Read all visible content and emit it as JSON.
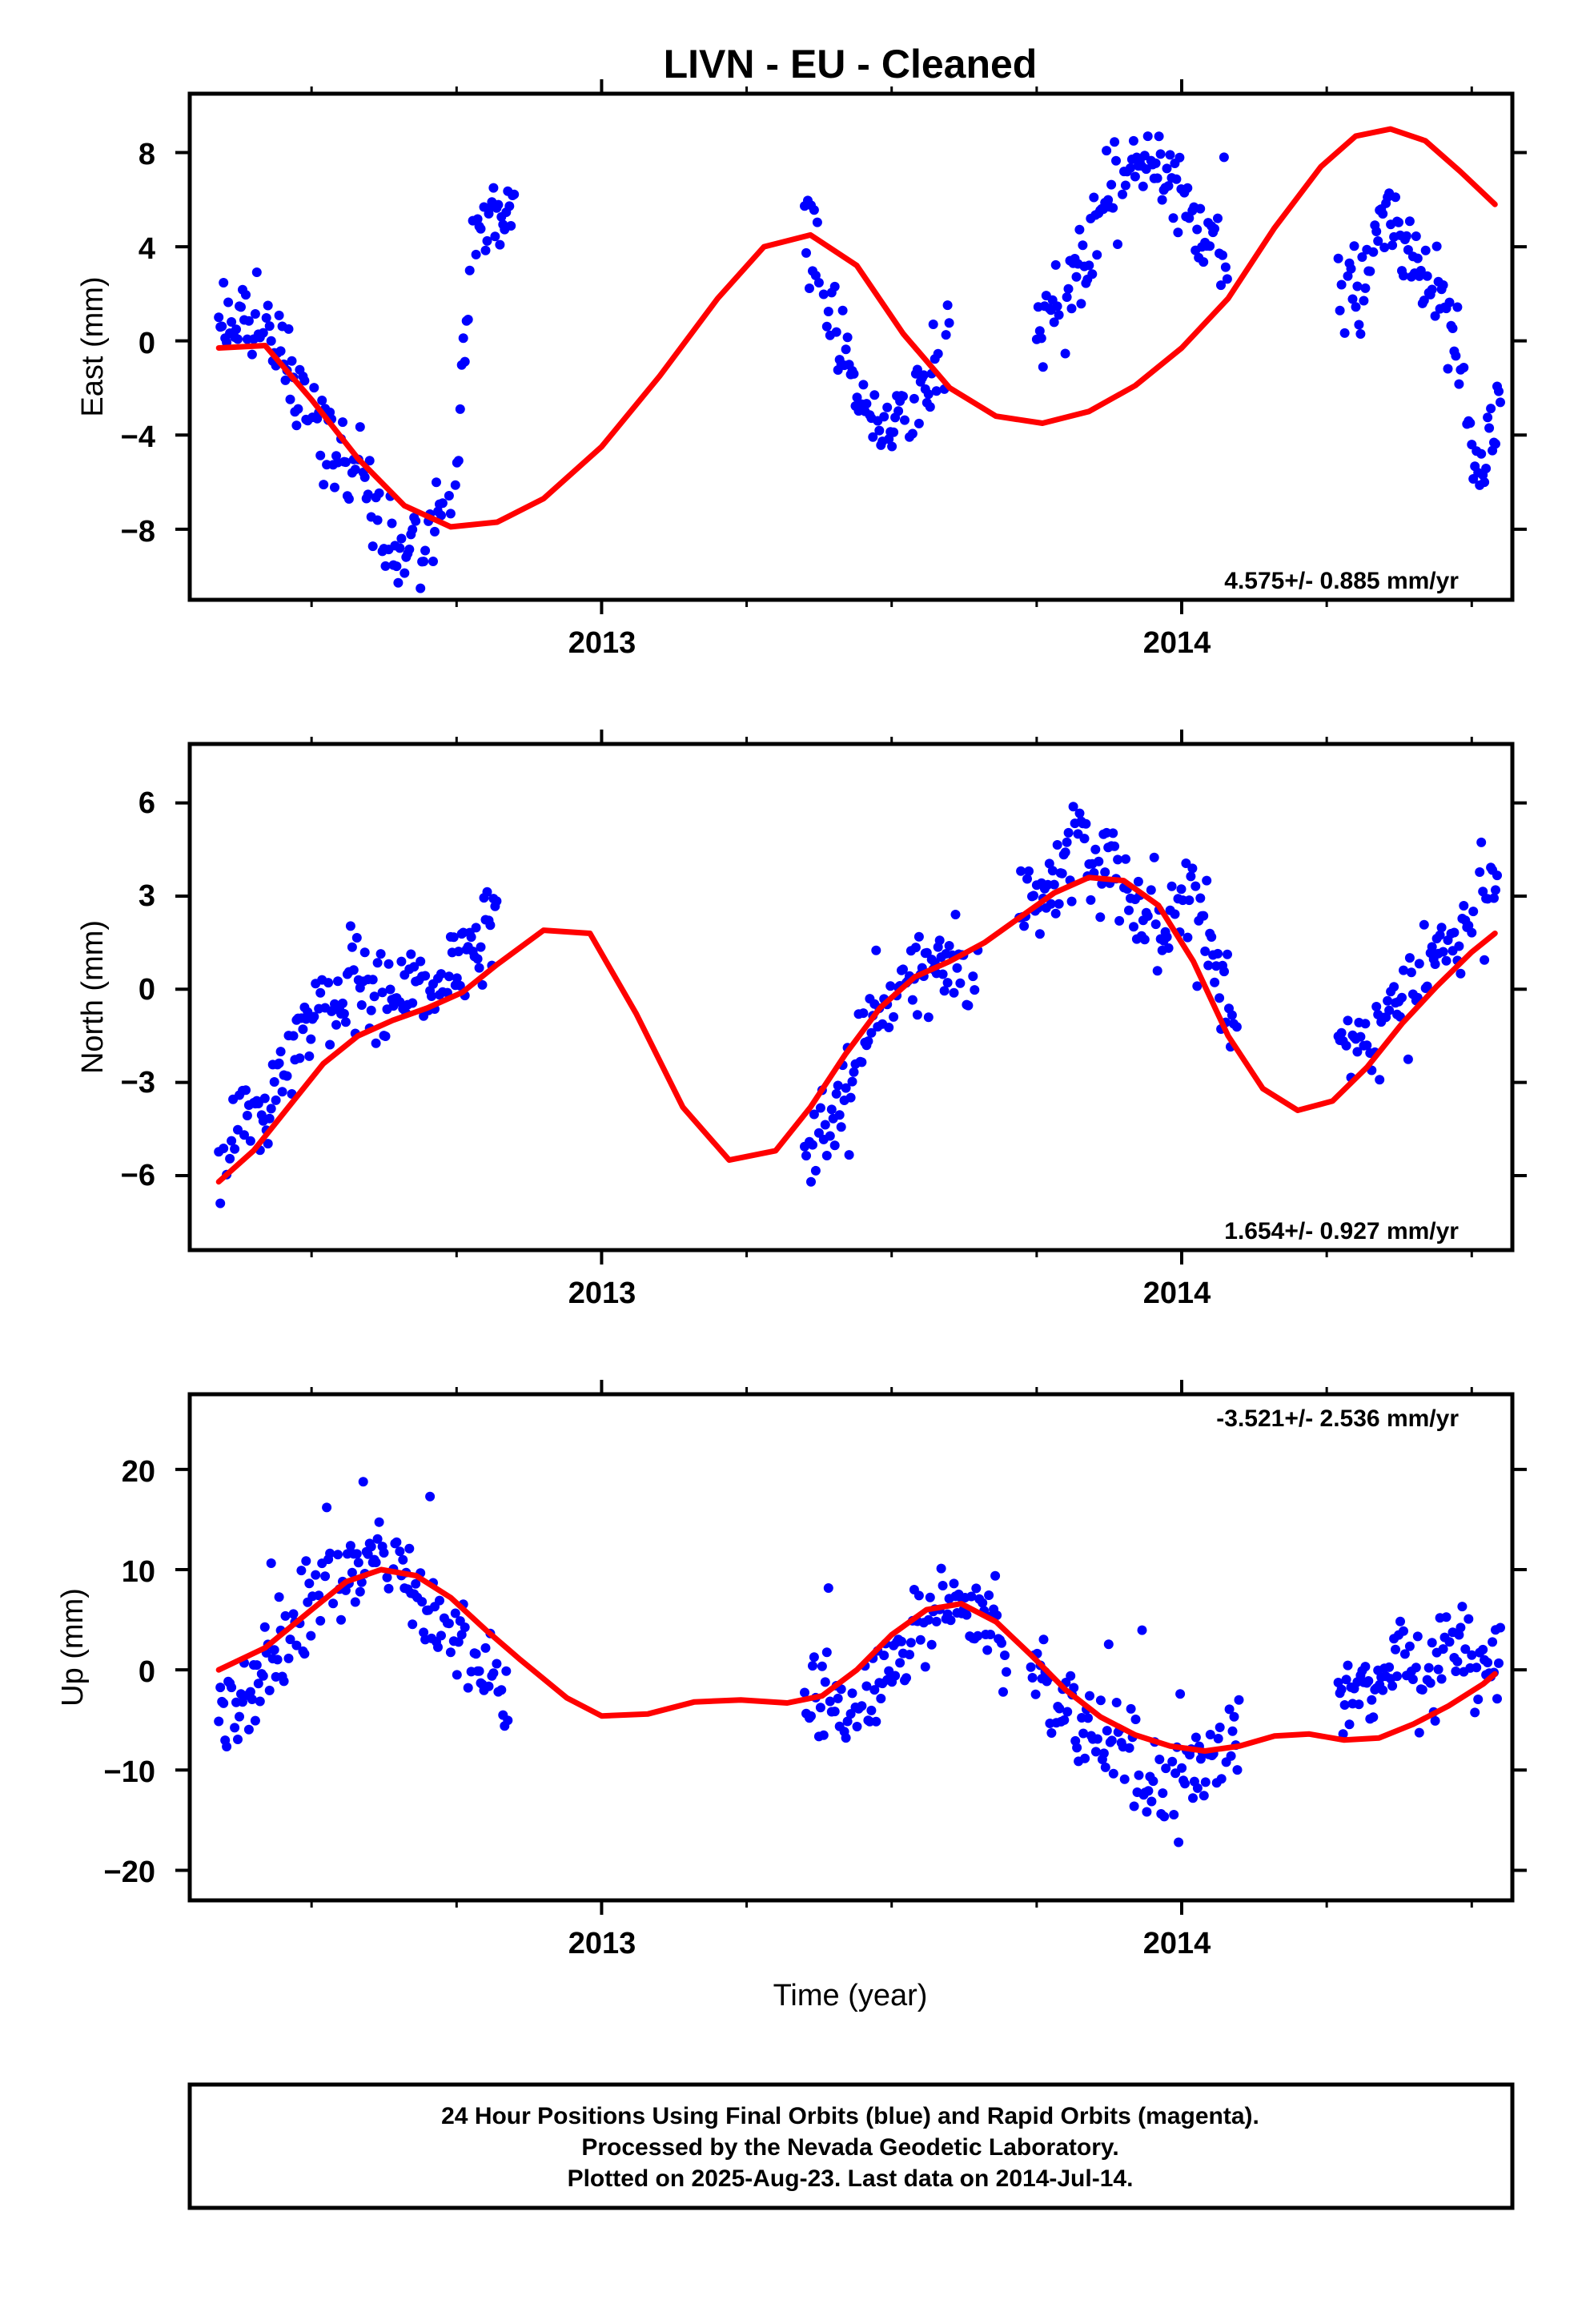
{
  "title": "LIVN  - EU - Cleaned",
  "xlabel": "Time (year)",
  "footer": [
    "24 Hour Positions Using Final Orbits (blue) and Rapid Orbits (magenta).",
    "Processed by the Nevada Geodetic Laboratory.",
    "Plotted on 2025-Aug-23. Last data on 2014-Jul-14."
  ],
  "colors": {
    "points": "#0000ff",
    "model": "#ff0000",
    "frame": "#000000"
  },
  "chart_data": [
    {
      "type": "scatter",
      "ylabel": "East (mm)",
      "rate": "4.575+/- 0.885 mm/yr",
      "xlim": [
        2012.29,
        2014.57
      ],
      "ylim": [
        -11,
        10.5
      ],
      "xticks": [
        2013,
        2014
      ],
      "xtick_labels": [
        "2013",
        "2014"
      ],
      "yticks": [
        8,
        4,
        0,
        -4,
        -8
      ],
      "ytick_labels": [
        "8",
        "4",
        "0",
        "−4",
        "−8"
      ],
      "grid": false,
      "segments": [
        [
          2012.34,
          2012.85,
          2
        ],
        [
          2013.35,
          2013.6,
          5
        ],
        [
          2013.75,
          2014.08,
          1
        ],
        [
          2014.27,
          2014.55,
          7
        ]
      ],
      "series": [
        {
          "kind": "points",
          "x": [
            2012.34,
            2012.38,
            2012.42,
            2012.46,
            2012.5,
            2012.54,
            2012.58,
            2012.62,
            2012.66,
            2012.7,
            2012.74,
            2012.78,
            2012.82,
            2012.85,
            2013.35,
            2013.38,
            2013.41,
            2013.44,
            2013.47,
            2013.5,
            2013.53,
            2013.56,
            2013.6,
            2013.75,
            2013.79,
            2013.83,
            2013.87,
            2013.91,
            2013.95,
            2013.99,
            2014.03,
            2014.08,
            2014.27,
            2014.31,
            2014.35,
            2014.39,
            2014.43,
            2014.47,
            2014.51,
            2014.55
          ],
          "y": [
            1.2,
            1,
            0.5,
            -1.5,
            -3,
            -4.8,
            -5.6,
            -8.2,
            -8.5,
            -7.8,
            -7.5,
            4.8,
            5.2,
            5.5,
            5.8,
            2,
            -1,
            -2.2,
            -3.2,
            -3.5,
            -2.8,
            -1.6,
            -0.5,
            0.6,
            1.5,
            2.4,
            6.8,
            7.5,
            7,
            6.2,
            5,
            3.2,
            2.5,
            1.8,
            6,
            4,
            2,
            0.5,
            -6,
            -2
          ]
        },
        {
          "kind": "model",
          "x": [
            2012.34,
            2012.42,
            2012.5,
            2012.58,
            2012.66,
            2012.74,
            2012.82,
            2012.9,
            2013,
            2013.1,
            2013.2,
            2013.28,
            2013.36,
            2013.44,
            2013.52,
            2013.6,
            2013.68,
            2013.76,
            2013.84,
            2013.92,
            2014,
            2014.08,
            2014.16,
            2014.24,
            2014.3,
            2014.36,
            2014.42,
            2014.48,
            2014.54
          ],
          "y": [
            -0.3,
            -0.2,
            -2.5,
            -5,
            -7,
            -7.9,
            -7.7,
            -6.7,
            -4.5,
            -1.5,
            1.8,
            4,
            4.5,
            3.2,
            0.3,
            -2,
            -3.2,
            -3.5,
            -3,
            -1.9,
            -0.3,
            1.8,
            4.8,
            7.4,
            8.7,
            9,
            8.5,
            7.2,
            5.8
          ]
        }
      ]
    },
    {
      "type": "scatter",
      "ylabel": "North (mm)",
      "rate": "1.654+/- 0.927 mm/yr",
      "xlim": [
        2012.29,
        2014.57
      ],
      "ylim": [
        -8.4,
        7.9
      ],
      "xticks": [
        2013,
        2014
      ],
      "xtick_labels": [
        "2013",
        "2014"
      ],
      "yticks": [
        6,
        3,
        0,
        -3,
        -6
      ],
      "ytick_labels": [
        "6",
        "3",
        "0",
        "−3",
        "−6"
      ],
      "grid": false,
      "segments": [
        [
          2012.34,
          2012.82,
          3
        ],
        [
          2013.35,
          2013.65,
          8
        ],
        [
          2013.72,
          2014.1,
          4
        ],
        [
          2014.27,
          2014.55,
          9
        ]
      ],
      "series": [
        {
          "kind": "points",
          "x": [
            2012.34,
            2012.38,
            2012.42,
            2012.46,
            2012.5,
            2012.54,
            2012.58,
            2012.62,
            2012.66,
            2012.7,
            2012.74,
            2012.78,
            2012.82,
            2013.35,
            2013.39,
            2013.43,
            2013.47,
            2013.51,
            2013.55,
            2013.59,
            2013.65,
            2013.72,
            2013.77,
            2013.82,
            2013.87,
            2013.92,
            2013.97,
            2014.02,
            2014.07,
            2014.1,
            2014.27,
            2014.31,
            2014.35,
            2014.39,
            2014.43,
            2014.47,
            2014.51,
            2014.55
          ],
          "y": [
            -5.8,
            -4.2,
            -3.6,
            -2,
            -1,
            0,
            0.6,
            -0.4,
            -0.2,
            -0.5,
            0.5,
            1,
            2,
            -5,
            -4.5,
            -3.2,
            -1,
            0.2,
            0.5,
            0.6,
            0.7,
            2.5,
            3.4,
            4.8,
            4.2,
            2.5,
            2,
            2.8,
            0.2,
            -2,
            -1.2,
            -1.8,
            -0.8,
            0,
            1.2,
            1.8,
            2.6,
            3.4
          ]
        },
        {
          "kind": "model",
          "x": [
            2012.34,
            2012.4,
            2012.46,
            2012.52,
            2012.58,
            2012.64,
            2012.7,
            2012.76,
            2012.82,
            2012.9,
            2012.98,
            2013.06,
            2013.14,
            2013.22,
            2013.3,
            2013.36,
            2013.42,
            2013.48,
            2013.54,
            2013.6,
            2013.66,
            2013.72,
            2013.78,
            2013.84,
            2013.9,
            2013.96,
            2014.02,
            2014.08,
            2014.14,
            2014.2,
            2014.26,
            2014.32,
            2014.38,
            2014.44,
            2014.5,
            2014.54
          ],
          "y": [
            -6.2,
            -5.2,
            -3.8,
            -2.4,
            -1.5,
            -1,
            -0.6,
            -0.1,
            0.8,
            1.9,
            1.8,
            -0.8,
            -3.8,
            -5.5,
            -5.2,
            -3.8,
            -2.1,
            -0.6,
            0.4,
            0.9,
            1.5,
            2.3,
            3.1,
            3.6,
            3.5,
            2.7,
            0.9,
            -1.5,
            -3.2,
            -3.9,
            -3.6,
            -2.5,
            -1.1,
            0.1,
            1.2,
            1.8
          ]
        }
      ]
    },
    {
      "type": "scatter",
      "ylabel": "Up (mm)",
      "rate": "-3.521+/- 2.536 mm/yr",
      "xlim": [
        2012.29,
        2014.57
      ],
      "ylim": [
        -23,
        27.5
      ],
      "xticks": [
        2013,
        2014
      ],
      "xtick_labels": [
        "2013",
        "2014"
      ],
      "yticks": [
        20,
        10,
        0,
        -10,
        -20
      ],
      "ytick_labels": [
        "20",
        "10",
        "0",
        "−10",
        "−20"
      ],
      "grid": false,
      "segments": [
        [
          2012.34,
          2012.84,
          11
        ],
        [
          2013.35,
          2013.7,
          13
        ],
        [
          2013.74,
          2014.1,
          17
        ],
        [
          2014.27,
          2014.55,
          19
        ]
      ],
      "series": [
        {
          "kind": "points",
          "x": [
            2012.34,
            2012.38,
            2012.42,
            2012.46,
            2012.5,
            2012.54,
            2012.58,
            2012.62,
            2012.66,
            2012.7,
            2012.74,
            2012.78,
            2012.82,
            2012.84,
            2013.35,
            2013.39,
            2013.43,
            2013.47,
            2013.51,
            2013.55,
            2013.59,
            2013.63,
            2013.67,
            2013.7,
            2013.74,
            2013.78,
            2013.82,
            2013.86,
            2013.9,
            2013.94,
            2013.98,
            2014.02,
            2014.06,
            2014.1,
            2014.27,
            2014.31,
            2014.35,
            2014.39,
            2014.43,
            2014.47,
            2014.51,
            2014.55
          ],
          "y": [
            -5,
            -3,
            0,
            4,
            7,
            9,
            10.5,
            11,
            9,
            6,
            4,
            2,
            -2,
            -4,
            -4,
            -3,
            -5,
            -2,
            2,
            4,
            6,
            7,
            5,
            3,
            0,
            -3,
            -5,
            -7,
            -9,
            -10,
            -11,
            -9,
            -8,
            -6,
            -3,
            -2,
            0,
            1,
            -1,
            2,
            1,
            2
          ]
        },
        {
          "kind": "model",
          "x": [
            2012.34,
            2012.42,
            2012.5,
            2012.56,
            2012.62,
            2012.68,
            2012.74,
            2012.8,
            2012.86,
            2012.94,
            2013,
            2013.08,
            2013.16,
            2013.24,
            2013.32,
            2013.38,
            2013.44,
            2013.5,
            2013.56,
            2013.62,
            2013.68,
            2013.74,
            2013.8,
            2013.86,
            2013.92,
            2013.98,
            2014.04,
            2014.1,
            2014.16,
            2014.22,
            2014.28,
            2014.34,
            2014.4,
            2014.46,
            2014.52,
            2014.54
          ],
          "y": [
            0,
            2.2,
            6,
            8.8,
            10,
            9.4,
            7.2,
            4,
            1,
            -2.8,
            -4.6,
            -4.4,
            -3.2,
            -3,
            -3.3,
            -2.6,
            0,
            3.5,
            6,
            6.6,
            4.8,
            1.5,
            -2,
            -4.7,
            -6.5,
            -7.6,
            -8.1,
            -7.6,
            -6.6,
            -6.4,
            -7,
            -6.8,
            -5.4,
            -3.6,
            -1.4,
            -0.4
          ]
        }
      ]
    }
  ]
}
